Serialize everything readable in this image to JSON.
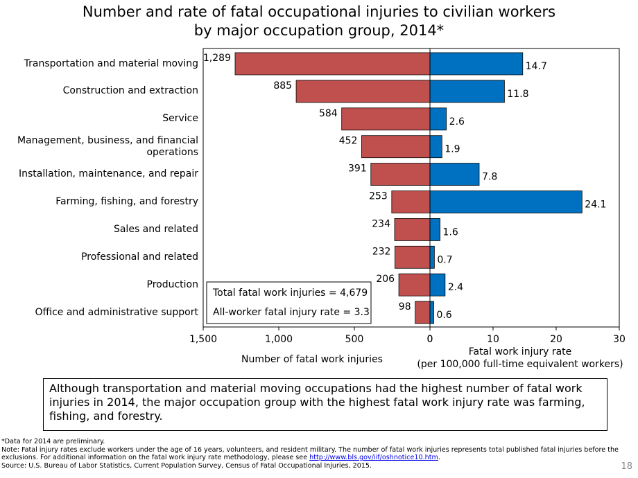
{
  "chart_data": {
    "type": "bar",
    "orientation": "horizontal",
    "title": [
      "Number and rate of fatal occupational injuries to civilian workers",
      "by major occupation group, 2014*"
    ],
    "categories": [
      "Transportation and material moving",
      "Construction and extraction",
      "Service",
      "Management, business, and financial operations",
      "Installation, maintenance, and repair",
      "Farming, fishing, and forestry",
      "Sales and related",
      "Professional and related",
      "Production",
      "Office and administrative support"
    ],
    "panels": [
      {
        "xlabel": [
          "Number of fatal work injuries"
        ],
        "color": "#c0504d",
        "values": [
          1289,
          885,
          584,
          452,
          391,
          253,
          234,
          232,
          206,
          98
        ],
        "value_labels": [
          "1,289",
          "885",
          "584",
          "452",
          "391",
          "253",
          "234",
          "232",
          "206",
          "98"
        ],
        "xlim": [
          1500,
          0
        ],
        "xticks": [
          {
            "value": 1500,
            "label": "1,500"
          },
          {
            "value": 1000,
            "label": "1,000"
          },
          500,
          0
        ]
      },
      {
        "xlabel": [
          "Fatal work injury rate",
          "(per 100,000 full-time equivalent workers)"
        ],
        "color": "#0070c0",
        "values": [
          14.7,
          11.8,
          2.6,
          1.9,
          7.8,
          24.1,
          1.6,
          0.7,
          2.4,
          0.6
        ],
        "xlim": [
          0,
          30
        ],
        "xticks": [
          0,
          10,
          20,
          30
        ]
      }
    ],
    "annotations": [
      "Total fatal work injuries = 4,679",
      "All-worker fatal injury rate = 3.3"
    ]
  },
  "callout": "Although transportation and material moving occupations had the highest number of fatal work injuries in 2014, the major occupation group with the highest fatal work injury rate was farming, fishing, and forestry.",
  "footnotes": {
    "data": "*Data for 2014 are preliminary.",
    "note": "Note: Fatal injury rates exclude workers under the age of 16 years, volunteers, and resident military. The number of fatal work injuries represents total published fatal injuries before the exclusions. For additional information on the fatal work injury rate methodology, please see ",
    "link": "http://www.bls.gov/iif/oshnotice10.htm",
    "note_end": ".",
    "source": "Source:  U.S. Bureau of Labor Statistics, Current Population Survey, Census of Fatal Occupational Injuries, 2015."
  },
  "page_number": "18"
}
